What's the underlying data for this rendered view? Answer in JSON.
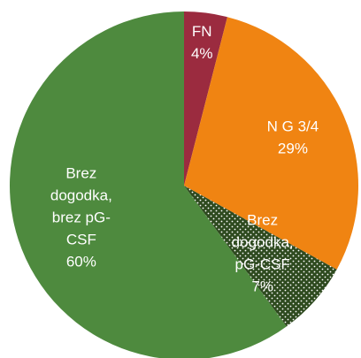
{
  "chart_data": {
    "type": "pie",
    "categories": [
      [
        "FN"
      ],
      [
        "N G 3/4"
      ],
      [
        "Brez",
        "dogodka,",
        "pG-CSF"
      ],
      [
        "Brez",
        "dogodka,",
        "brez pG-",
        "CSF"
      ]
    ],
    "values": [
      4,
      29,
      7,
      60
    ],
    "value_labels": [
      "4%",
      "29%",
      "7%",
      "60%"
    ],
    "colors": [
      "#9b2b3f",
      "#f08412",
      "#2e4a1f",
      "#4e8a3e"
    ],
    "dotted": [
      false,
      false,
      true,
      false
    ],
    "start_angle": 0,
    "direction": "clockwise"
  }
}
